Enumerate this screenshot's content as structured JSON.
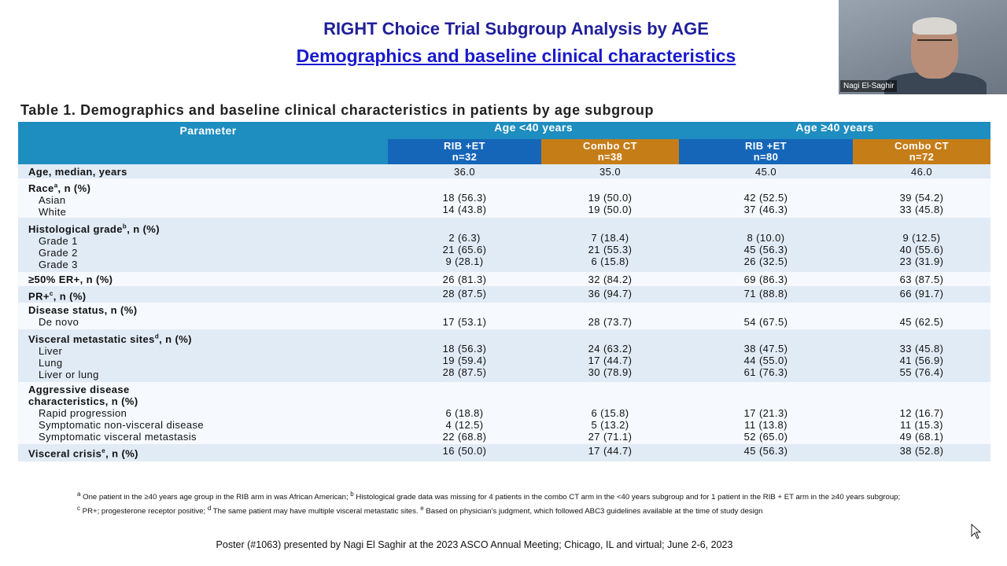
{
  "slide": {
    "title": "RIGHT Choice Trial Subgroup Analysis by AGE",
    "subtitle": "Demographics and baseline clinical characteristics",
    "table_caption": "Table 1. Demographics and baseline clinical characteristics in patients by age subgroup",
    "poster_credit": "Poster (#1063) presented by Nagi El Saghir at the 2023 ASCO Annual Meeting; Chicago, IL and virtual; June 2-6, 2023"
  },
  "video": {
    "participant_name": "Nagi El-Saghir"
  },
  "table": {
    "param_header": "Parameter",
    "group1": "Age <40 years",
    "group2": "Age ≥40 years",
    "arms": [
      {
        "name": "RIB +ET",
        "n": "n=32"
      },
      {
        "name": "Combo CT",
        "n": "n=38"
      },
      {
        "name": "RIB +ET",
        "n": "n=80"
      },
      {
        "name": "Combo CT",
        "n": "n=72"
      }
    ],
    "rows": {
      "age": {
        "label": "Age, median, years",
        "values": [
          "36.0",
          "35.0",
          "45.0",
          "46.0"
        ]
      },
      "race": {
        "label": "Race",
        "sup": "a",
        "suffix": ", n (%)",
        "asian": {
          "label": "Asian",
          "values": [
            "18 (56.3)",
            "19 (50.0)",
            "42 (52.5)",
            "39 (54.2)"
          ]
        },
        "white": {
          "label": "White",
          "values": [
            "14 (43.8)",
            "19 (50.0)",
            "37 (46.3)",
            "33 (45.8)"
          ]
        }
      },
      "grade": {
        "label": "Histological grade",
        "sup": "b",
        "suffix": ", n (%)",
        "g1": {
          "label": "Grade 1",
          "values": [
            "2 (6.3)",
            "7 (18.4)",
            "8 (10.0)",
            "9 (12.5)"
          ]
        },
        "g2": {
          "label": "Grade 2",
          "values": [
            "21 (65.6)",
            "21 (55.3)",
            "45 (56.3)",
            "40 (55.6)"
          ]
        },
        "g3": {
          "label": "Grade 3",
          "values": [
            "9 (28.1)",
            "6 (15.8)",
            "26 (32.5)",
            "23 (31.9)"
          ]
        }
      },
      "er": {
        "label": "≥50% ER+, n (%)",
        "values": [
          "26 (81.3)",
          "32 (84.2)",
          "69 (86.3)",
          "63 (87.5)"
        ]
      },
      "pr": {
        "label": "PR+",
        "sup": "c",
        "suffix": ", n (%)",
        "values": [
          "28 (87.5)",
          "36 (94.7)",
          "71 (88.8)",
          "66 (91.7)"
        ]
      },
      "disease": {
        "label": "Disease status, n (%)",
        "denovo": {
          "label": "De novo",
          "values": [
            "17 (53.1)",
            "28 (73.7)",
            "54 (67.5)",
            "45 (62.5)"
          ]
        }
      },
      "visceral": {
        "label": "Visceral metastatic sites",
        "sup": "d",
        "suffix": ", n (%)",
        "liver": {
          "label": "Liver",
          "values": [
            "18 (56.3)",
            "24 (63.2)",
            "38 (47.5)",
            "33 (45.8)"
          ]
        },
        "lung": {
          "label": "Lung",
          "values": [
            "19 (59.4)",
            "17 (44.7)",
            "44 (55.0)",
            "41 (56.9)"
          ]
        },
        "liverlung": {
          "label": "Liver or lung",
          "values": [
            "28 (87.5)",
            "30 (78.9)",
            "61 (76.3)",
            "55 (76.4)"
          ]
        }
      },
      "aggressive": {
        "label1": "Aggressive disease",
        "label2": "characteristics, n (%)",
        "rapid": {
          "label": "Rapid progression",
          "values": [
            "6 (18.8)",
            "6 (15.8)",
            "17 (21.3)",
            "12 (16.7)"
          ]
        },
        "nonvisc": {
          "label": "Symptomatic non-visceral disease",
          "values": [
            "4 (12.5)",
            "5 (13.2)",
            "11 (13.8)",
            "11 (15.3)"
          ]
        },
        "visc": {
          "label": "Symptomatic visceral metastasis",
          "values": [
            "22 (68.8)",
            "27 (71.1)",
            "52 (65.0)",
            "49 (68.1)"
          ]
        }
      },
      "crisis": {
        "label": "Visceral crisis",
        "sup": "e",
        "suffix": ", n (%)",
        "values": [
          "16 (50.0)",
          "17 (44.7)",
          "45 (56.3)",
          "38 (52.8)"
        ]
      }
    }
  },
  "footnotes": {
    "a_sup": "a",
    "a": " One patient in the ≥40 years age group in the RIB arm in was African American; ",
    "b_sup": "b",
    "b": " Histological grade data was missing for 4 patients in the combo CT arm in the <40 years subgroup and for 1 patient in the RIB + ET arm in the ≥40 years subgroup; ",
    "c_sup": "c",
    "c": " PR+; progesterone receptor positive; ",
    "d_sup": "d",
    "d": " The same patient may have multiple visceral metastatic sites. ",
    "e_sup": "e",
    "e": " Based on physician’s judgment, which followed ABC3 guidelines available at the time of study design"
  },
  "colors": {
    "header_blue": "#1e8dbf",
    "rib_arm": "#1566b8",
    "combo_arm": "#c57d18",
    "row_shade": "#e1ebf6",
    "title_blue": "#1f1f9a"
  }
}
